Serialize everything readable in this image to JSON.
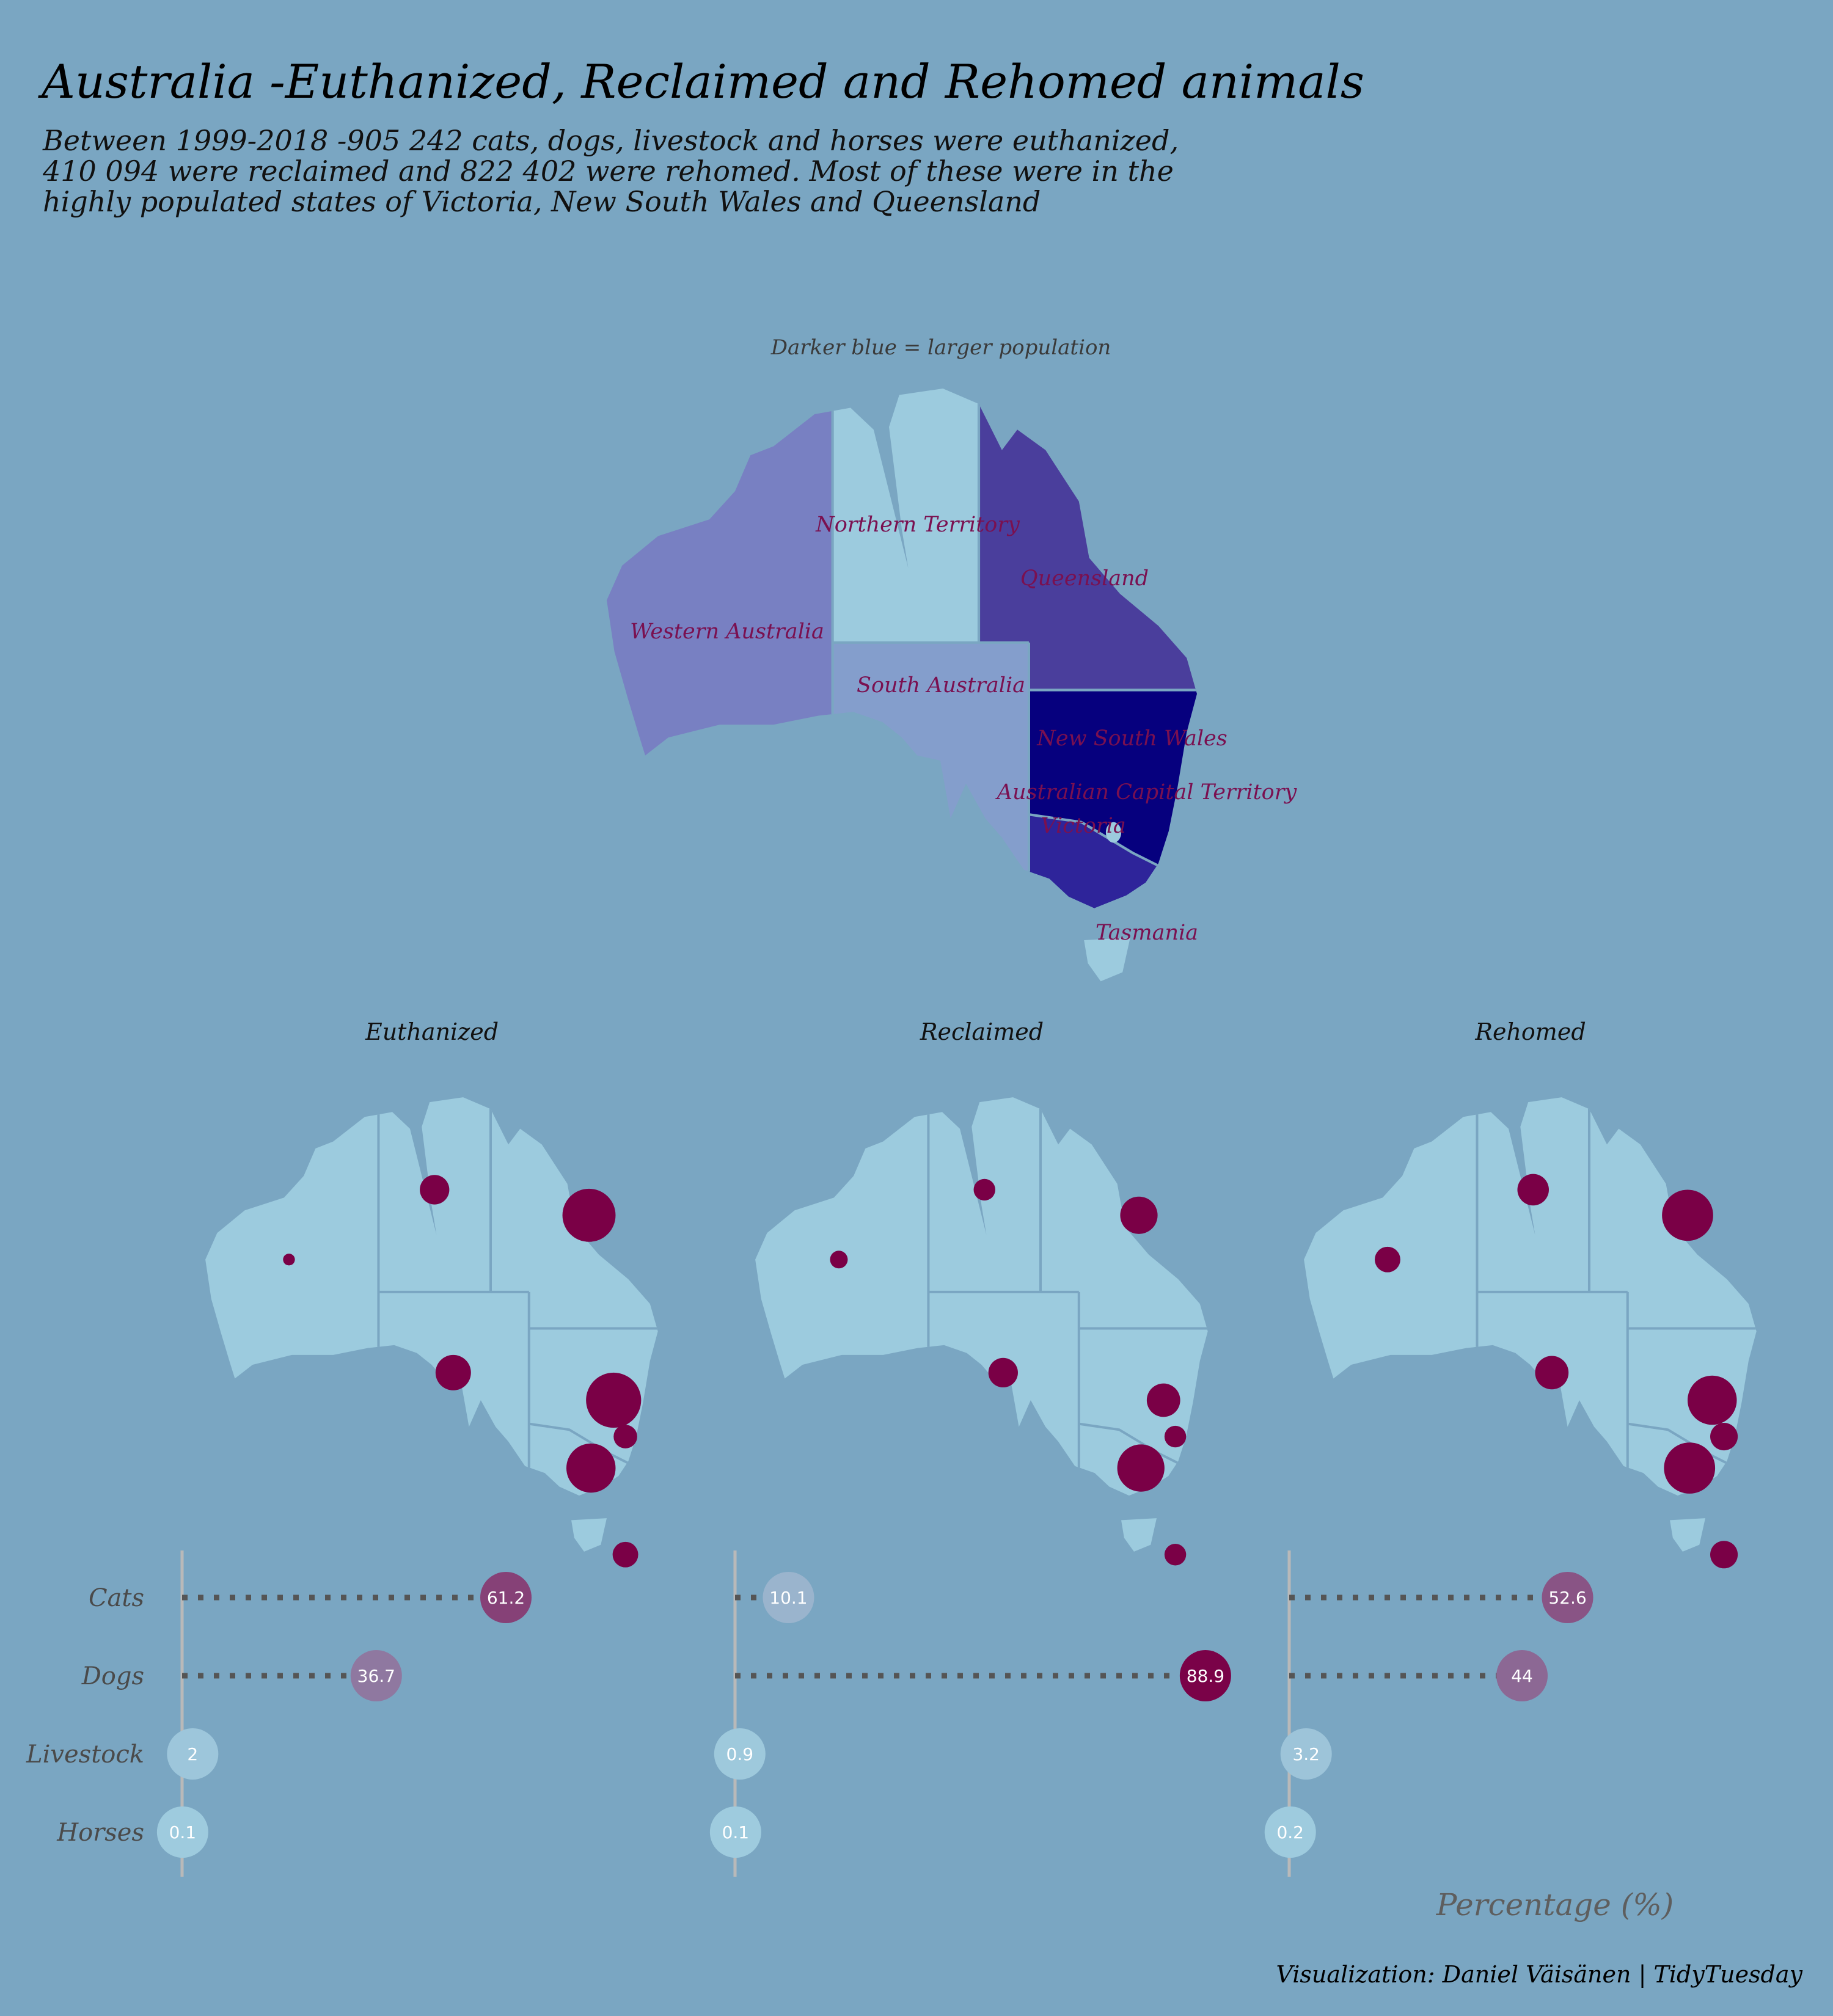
{
  "title": "Australia -Euthanized, Reclaimed and Rehomed animals",
  "subtitle_lines": [
    "Between 1999-2018 -905 242 cats, dogs, livestock and horses were euthanized,",
    "410 094 were reclaimed and 822 402 were rehomed. Most of these were in the",
    "highly populated states of Victoria, New South Wales and Queensland"
  ],
  "population_map": {
    "note": "Darker blue = larger population",
    "states": [
      {
        "name": "Western Australia",
        "color": "#7880c2"
      },
      {
        "name": "Northern Territory",
        "color": "#9ccbde"
      },
      {
        "name": "Queensland",
        "color": "#4a3e9c"
      },
      {
        "name": "South Australia",
        "color": "#849ecc"
      },
      {
        "name": "New South Wales",
        "color": "#06007e"
      },
      {
        "name": "Australian Capital Territory",
        "color": "#9ccbde"
      },
      {
        "name": "Victoria",
        "color": "#2e249a"
      },
      {
        "name": "Tasmania",
        "color": "#9ccbde"
      }
    ]
  },
  "colors": {
    "background": "#7aa6c2",
    "land": "#9ccbde",
    "border": "#7aa6c2",
    "bubble": "#7a0046",
    "dot_line": "#555555",
    "axis_line": "#b9b9b9"
  },
  "chart_data": {
    "type": "scatter",
    "x_label": "Percentage (%)",
    "categories": [
      "Cats",
      "Dogs",
      "Livestock",
      "Horses"
    ],
    "panels": [
      {
        "name": "Euthanized",
        "values": [
          61.2,
          36.7,
          2,
          0.1
        ]
      },
      {
        "name": "Reclaimed",
        "values": [
          10.1,
          88.9,
          0.9,
          0.1
        ]
      },
      {
        "name": "Rehomed",
        "values": [
          52.6,
          44,
          3.2,
          0.2
        ]
      }
    ]
  },
  "caption": "Visualization: Daniel Väisänen | TidyTuesday"
}
